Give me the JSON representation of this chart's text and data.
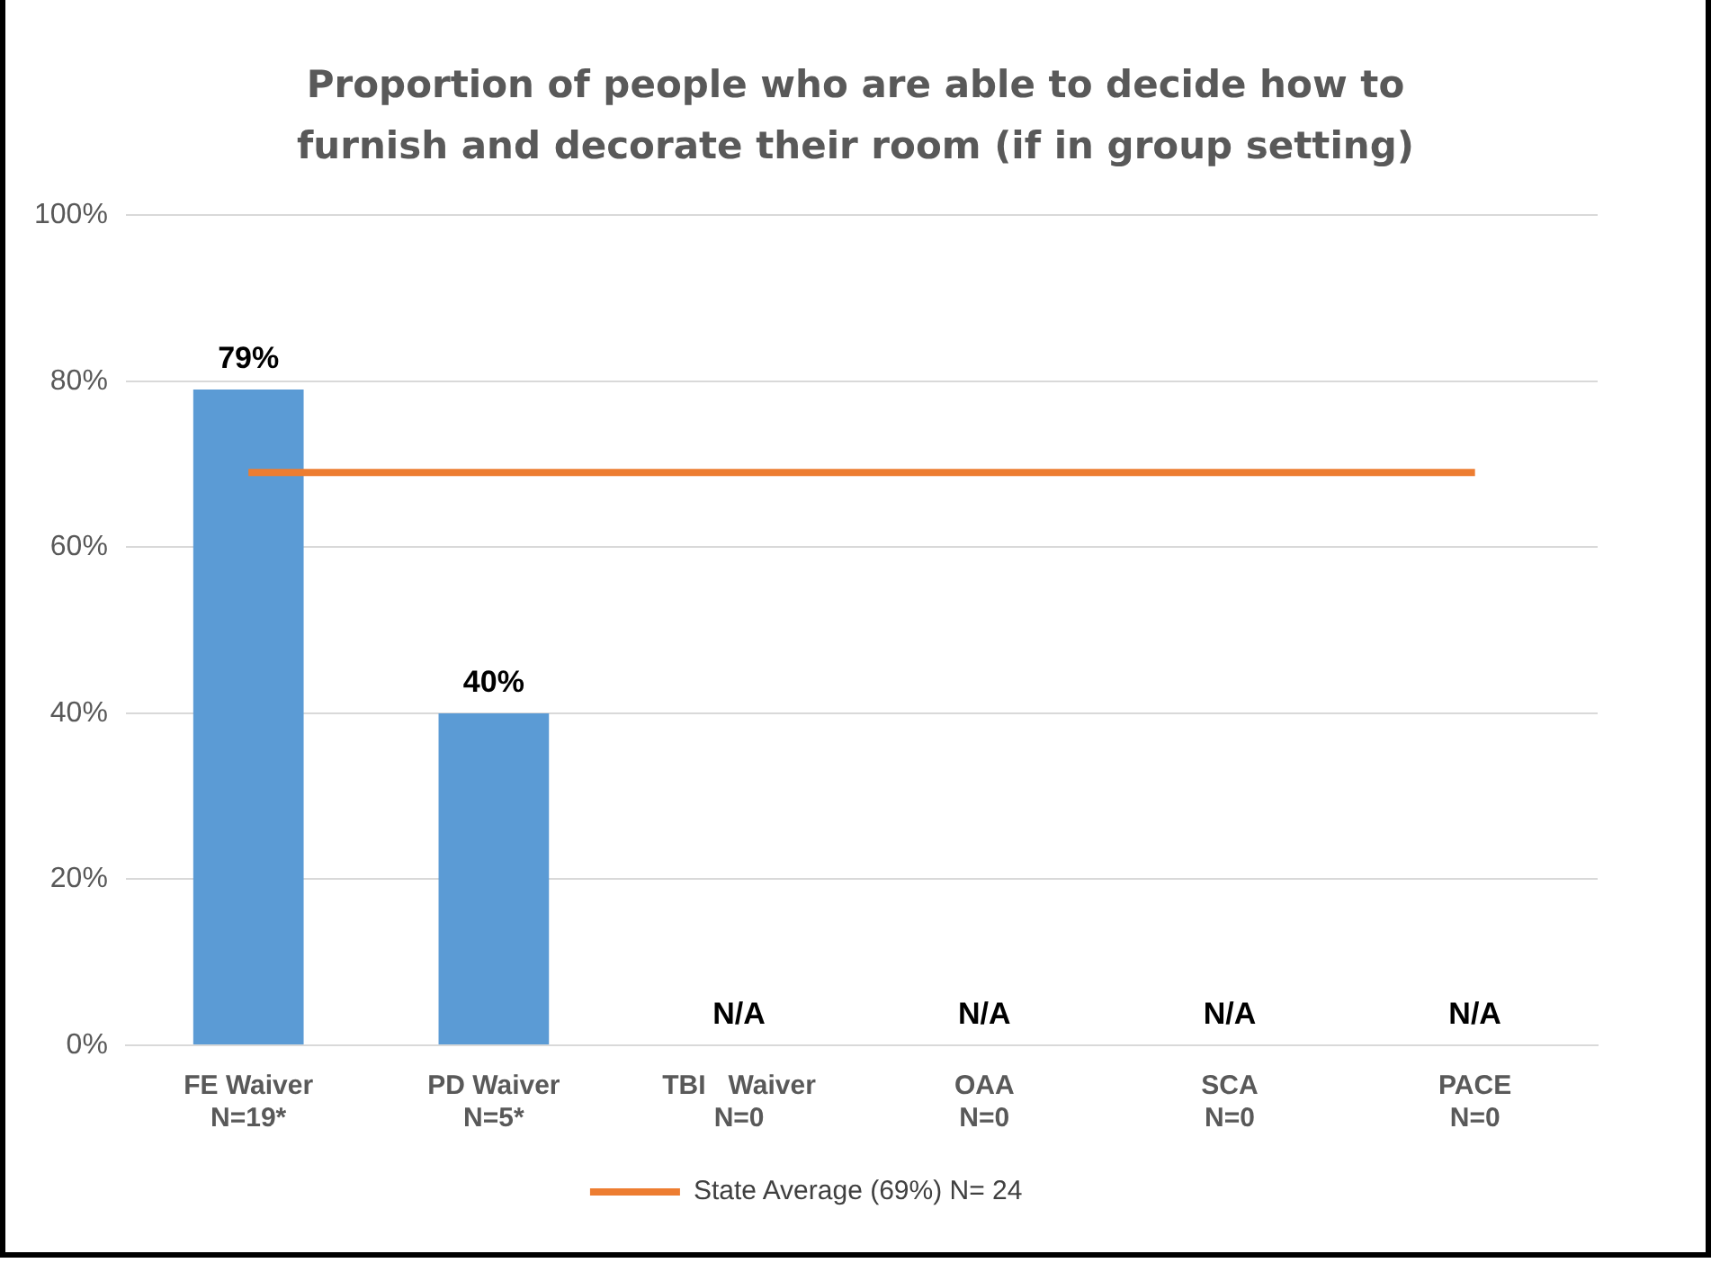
{
  "chart_data": {
    "type": "bar",
    "title": "Proportion of people who are able to decide how to furnish and decorate their room (if in group setting)",
    "categories": [
      "FE Waiver\nN=19*",
      "PD Waiver\nN=5*",
      "TBI   Waiver\nN=0",
      "OAA\nN=0",
      "SCA\nN=0",
      "PACE\nN=0"
    ],
    "series": [
      {
        "color": "#5b9bd5",
        "values": [
          79,
          40,
          null,
          null,
          null,
          null
        ],
        "value_labels": [
          "79%",
          "40%",
          "N/A",
          "N/A",
          "N/A",
          "N/A"
        ]
      },
      {
        "type": "line",
        "name": "State Average (69%) N= 24",
        "color": "#ed7d31",
        "values": [
          69,
          69,
          69,
          69,
          69,
          69
        ]
      }
    ],
    "ylim": [
      0,
      100
    ],
    "yticks": [
      {
        "value": 0,
        "label": "0%"
      },
      {
        "value": 20,
        "label": "20%"
      },
      {
        "value": 40,
        "label": "40%"
      },
      {
        "value": 60,
        "label": "60%"
      },
      {
        "value": 80,
        "label": "80%"
      },
      {
        "value": 100,
        "label": "100%"
      }
    ],
    "grid": "y",
    "legend": "bottom",
    "marker": "none"
  }
}
